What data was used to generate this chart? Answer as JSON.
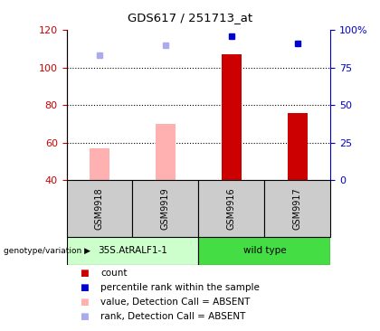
{
  "title": "GDS617 / 251713_at",
  "samples": [
    "GSM9918",
    "GSM9919",
    "GSM9916",
    "GSM9917"
  ],
  "group_labels": [
    "35S.AtRALF1-1",
    "wild type"
  ],
  "bar_values": [
    57,
    70,
    107,
    76
  ],
  "bar_absent": [
    true,
    true,
    false,
    false
  ],
  "rank_values": [
    83,
    90,
    96,
    91
  ],
  "rank_absent": [
    true,
    true,
    false,
    false
  ],
  "ylim_left": [
    40,
    120
  ],
  "ylim_right": [
    0,
    100
  ],
  "yticks_left": [
    40,
    60,
    80,
    100,
    120
  ],
  "yticks_right": [
    0,
    25,
    50,
    75,
    100
  ],
  "ytick_labels_right": [
    "0",
    "25",
    "50",
    "75",
    "100%"
  ],
  "color_bar_present": "#cc0000",
  "color_bar_absent": "#ffb0b0",
  "color_rank_present": "#0000cc",
  "color_rank_absent": "#aaaaee",
  "color_group1_bg": "#ccffcc",
  "color_group2_bg": "#44dd44",
  "left_tick_color": "#cc0000",
  "right_tick_color": "#0000cc",
  "legend_items": [
    {
      "label": "count",
      "color": "#cc0000"
    },
    {
      "label": "percentile rank within the sample",
      "color": "#0000cc"
    },
    {
      "label": "value, Detection Call = ABSENT",
      "color": "#ffb0b0"
    },
    {
      "label": "rank, Detection Call = ABSENT",
      "color": "#aaaaee"
    }
  ],
  "bar_width": 0.3,
  "gridline_values": [
    60,
    80,
    100
  ],
  "fig_width": 4.2,
  "fig_height": 3.66,
  "dpi": 100
}
